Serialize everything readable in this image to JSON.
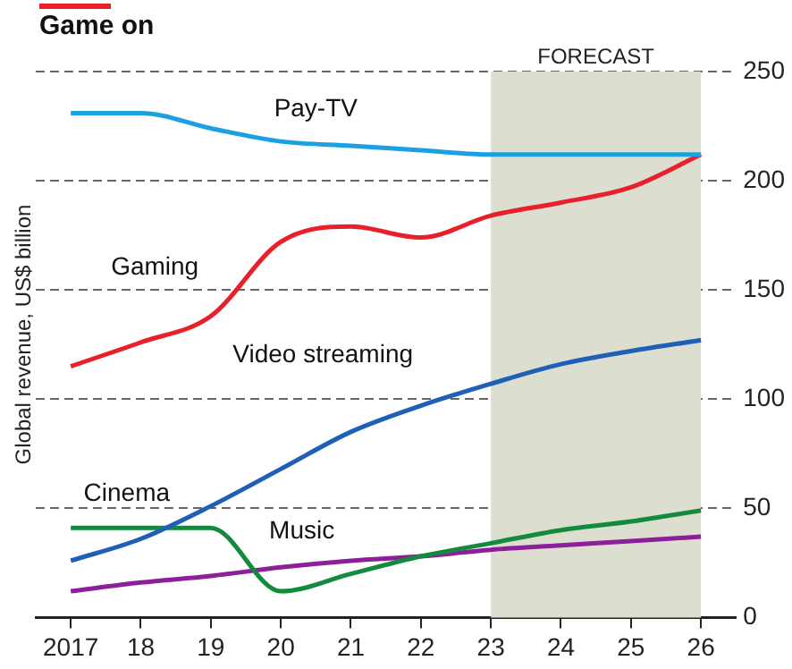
{
  "chart_data": {
    "type": "line",
    "title": "Game on",
    "ylabel": "Global revenue, US$ billion",
    "categories": [
      "2017",
      "18",
      "19",
      "20",
      "21",
      "22",
      "23",
      "24",
      "25",
      "26"
    ],
    "series": [
      {
        "name": "Pay-TV",
        "color": "#1ba1e2",
        "values": [
          231,
          231,
          224,
          218,
          216,
          214,
          212,
          212,
          212,
          212
        ]
      },
      {
        "name": "Gaming",
        "color": "#e8202a",
        "values": [
          115,
          126,
          138,
          172,
          179,
          174,
          184,
          190,
          197,
          212
        ]
      },
      {
        "name": "Video streaming",
        "color": "#1f5fb8",
        "values": [
          26,
          36,
          51,
          68,
          85,
          97,
          107,
          116,
          122,
          127
        ]
      },
      {
        "name": "Cinema",
        "color": "#138a3e",
        "values": [
          41,
          41,
          41,
          12,
          20,
          28,
          34,
          40,
          44,
          49
        ]
      },
      {
        "name": "Music",
        "color": "#8e1f9a",
        "values": [
          12,
          16,
          19,
          23,
          26,
          28,
          31,
          33,
          35,
          37
        ]
      }
    ],
    "ylim": [
      0,
      250
    ],
    "yticks": [
      0,
      50,
      100,
      150,
      200,
      250
    ],
    "grid": "y",
    "legend": false,
    "bands": [
      {
        "axis": "x",
        "from": "23",
        "to": "26",
        "label": "FORECAST",
        "color": "#dcdfd0"
      }
    ]
  }
}
